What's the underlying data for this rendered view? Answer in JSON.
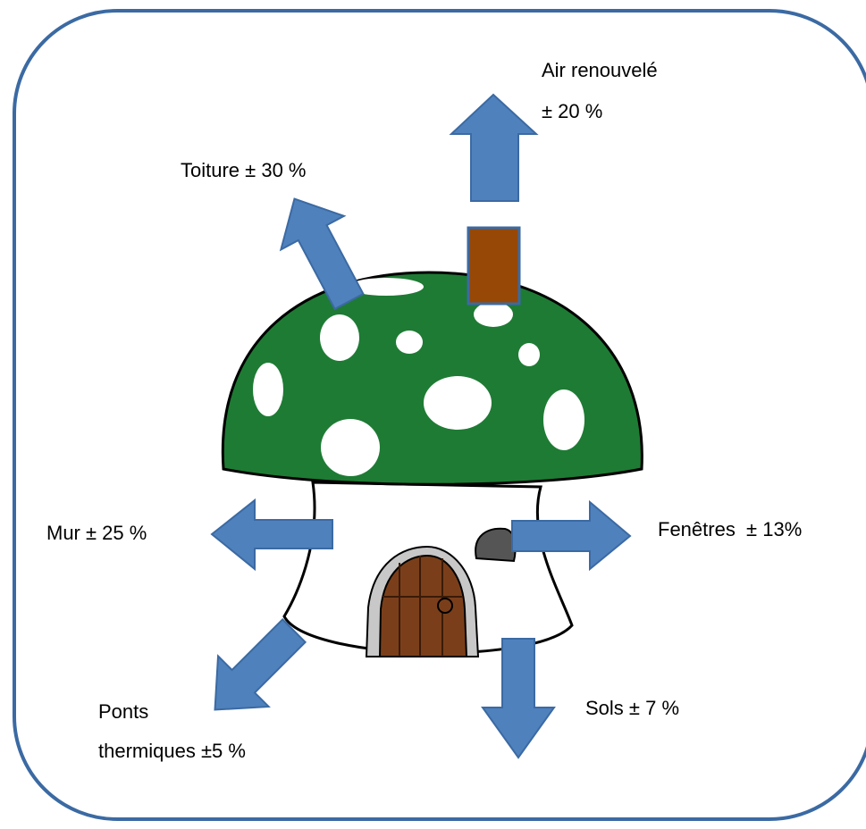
{
  "labels": {
    "air": [
      "Air renouvelé",
      "± 20 %"
    ],
    "toiture": [
      "Toiture ± 30 %"
    ],
    "mur": [
      "Mur ± 25 %"
    ],
    "fenetres": [
      "Fenêtres  ± 13%"
    ],
    "ponts": [
      "Ponts",
      "thermiques ±5 %"
    ],
    "sols": [
      "Sols ± 7 %"
    ]
  }
}
